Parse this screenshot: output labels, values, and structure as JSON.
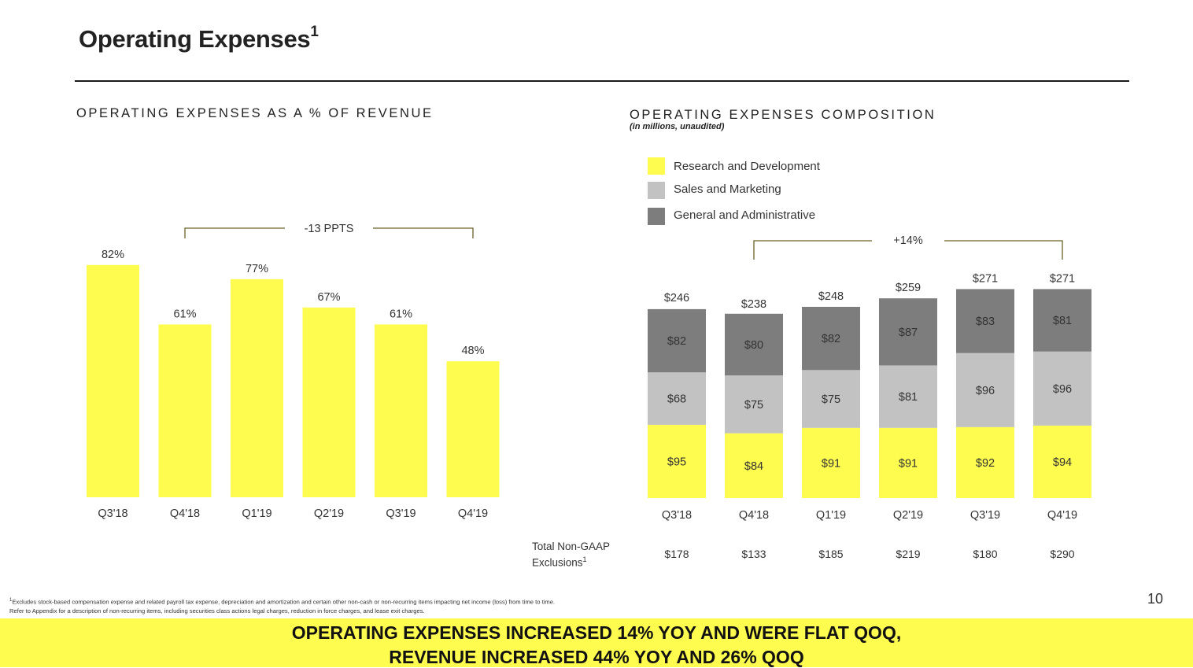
{
  "title": "Operating Expenses",
  "title_sup": "1",
  "page_number": "10",
  "colors": {
    "yellow": "#fffc50",
    "light_gray": "#c2c2c2",
    "dark_gray": "#7d7d7d",
    "bracket": "#6b6128",
    "text": "#333333"
  },
  "chart_data": [
    {
      "type": "bar",
      "title": "OPERATING EXPENSES AS A % OF REVENUE",
      "categories": [
        "Q3'18",
        "Q4'18",
        "Q1'19",
        "Q2'19",
        "Q3'19",
        "Q4'19"
      ],
      "values": [
        82,
        61,
        77,
        67,
        61,
        48
      ],
      "data_labels": [
        "82%",
        "61%",
        "77%",
        "67%",
        "61%",
        "48%"
      ],
      "ylim": [
        0,
        100
      ],
      "annotation": "-13 PPTS",
      "annotation_span": [
        "Q4'18",
        "Q4'19"
      ]
    },
    {
      "type": "bar",
      "stacked": true,
      "title": "OPERATING EXPENSES COMPOSITION",
      "subtitle": "(in millions, unaudited)",
      "categories": [
        "Q3'18",
        "Q4'18",
        "Q1'19",
        "Q2'19",
        "Q3'19",
        "Q4'19"
      ],
      "series": [
        {
          "name": "Research and Development",
          "values": [
            95,
            84,
            91,
            91,
            92,
            94
          ],
          "labels": [
            "$95",
            "$84",
            "$91",
            "$91",
            "$92",
            "$94"
          ]
        },
        {
          "name": "Sales and Marketing",
          "values": [
            68,
            75,
            75,
            81,
            96,
            96
          ],
          "labels": [
            "$68",
            "$75",
            "$75",
            "$81",
            "$96",
            "$96"
          ]
        },
        {
          "name": "General and Administrative",
          "values": [
            82,
            80,
            82,
            87,
            83,
            81
          ],
          "labels": [
            "$82",
            "$80",
            "$82",
            "$87",
            "$83",
            "$81"
          ]
        }
      ],
      "totals": [
        "$246",
        "$238",
        "$248",
        "$259",
        "$271",
        "$271"
      ],
      "total_values": [
        246,
        238,
        248,
        259,
        271,
        271
      ],
      "ylim": [
        0,
        300
      ],
      "annotation": "+14%",
      "annotation_span": [
        "Q4'18",
        "Q4'19"
      ],
      "non_gaap_label": "Total Non-GAAP",
      "non_gaap_label_2": "Exclusions",
      "non_gaap_sup": "1",
      "non_gaap_values": [
        "$178",
        "$133",
        "$185",
        "$219",
        "$180",
        "$290"
      ]
    }
  ],
  "footnote": {
    "sup": "1",
    "line1": "Excludes stock-based compensation expense and related payroll tax expense, depreciation and amortization and certain other non-cash or non-recurring items impacting net income (loss) from time to time.",
    "line2": "Refer to Appendix for a description of non-recurring items, including securities class actions legal charges, reduction in force charges, and lease exit charges."
  },
  "banner": {
    "line1": "OPERATING EXPENSES INCREASED 14% YOY AND WERE FLAT QOQ,",
    "line2": "REVENUE INCREASED 44% YOY AND 26% QOQ"
  }
}
